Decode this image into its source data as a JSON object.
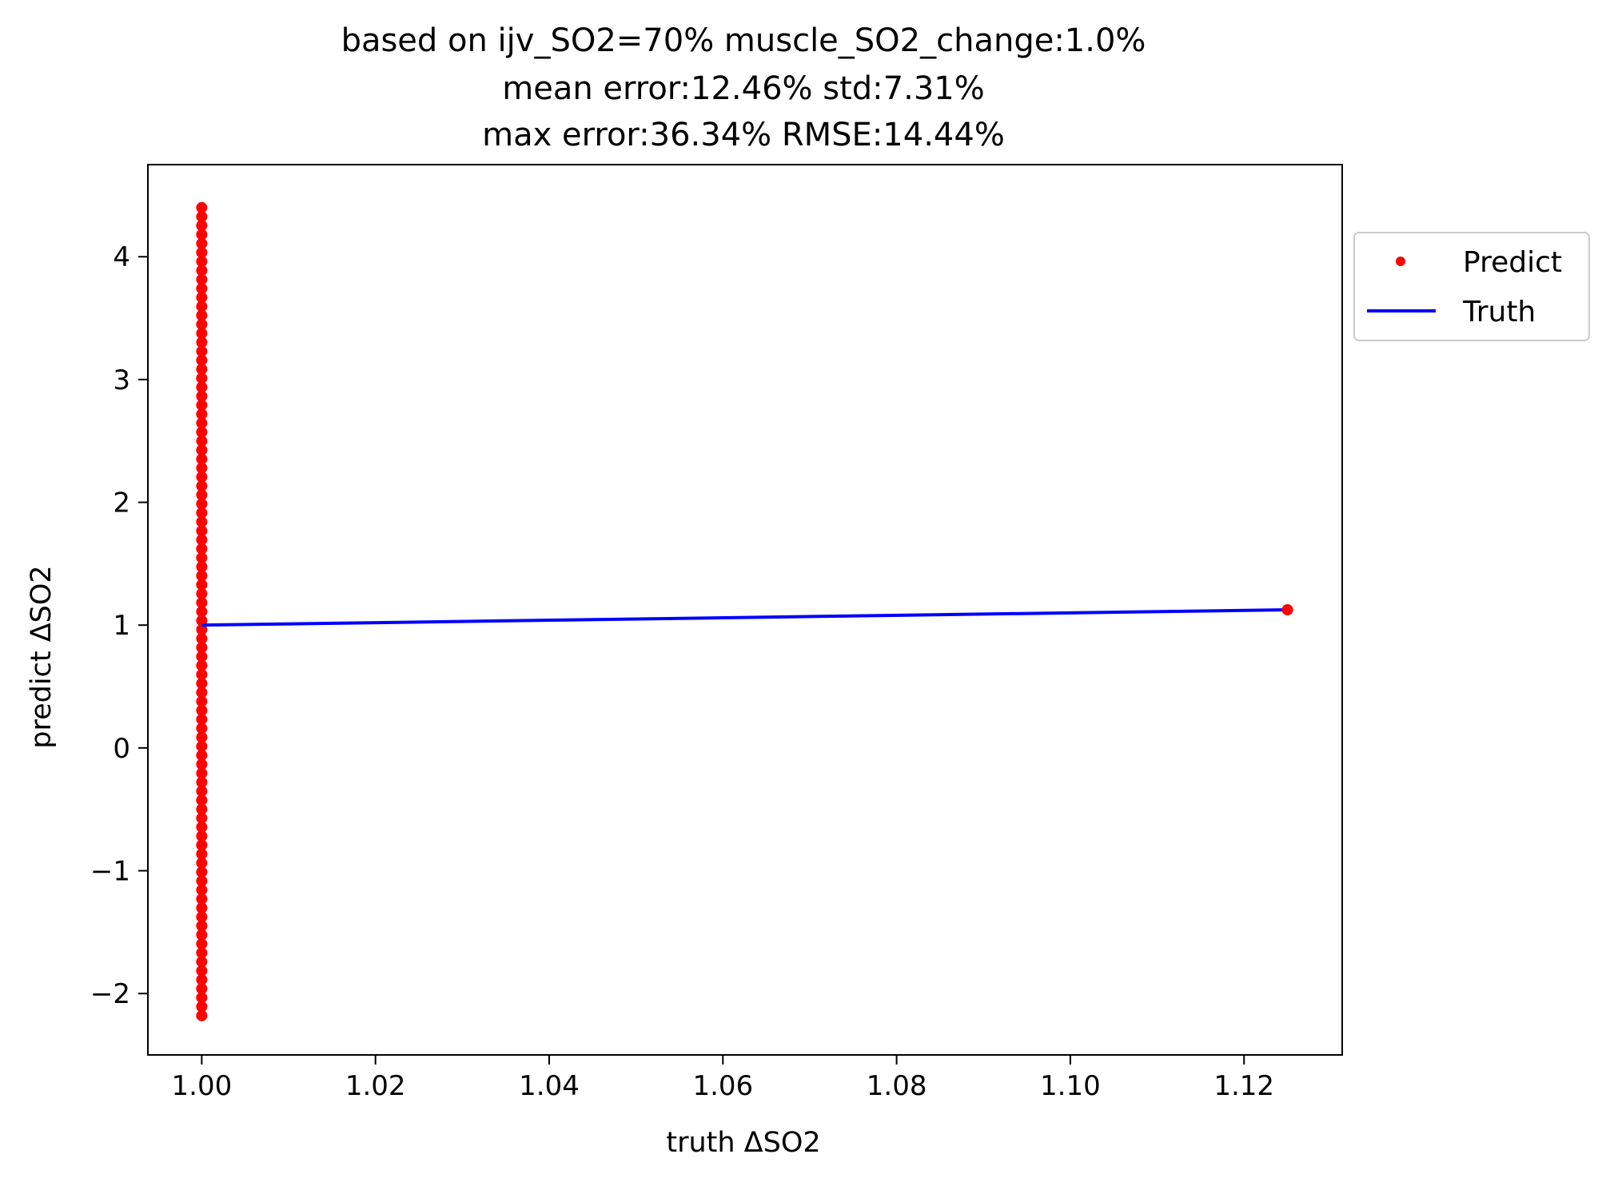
{
  "chart_data": {
    "type": "scatter",
    "title": [
      "based on ijv_SO2=70% muscle_SO2_change:1.0%",
      "mean error:12.46% std:7.31%",
      "max error:36.34% RMSE:14.44%"
    ],
    "xlabel": "truth ΔSO2",
    "ylabel": "predict ΔSO2",
    "xlim": [
      0.9938,
      1.1313
    ],
    "ylim": [
      -2.5,
      4.75
    ],
    "x_ticks": [
      1.0,
      1.02,
      1.04,
      1.06,
      1.08,
      1.1,
      1.12
    ],
    "x_tick_labels": [
      "1.00",
      "1.02",
      "1.04",
      "1.06",
      "1.08",
      "1.10",
      "1.12"
    ],
    "y_ticks": [
      -2,
      -1,
      0,
      1,
      2,
      3,
      4
    ],
    "y_tick_labels": [
      "−2",
      "−1",
      "0",
      "1",
      "2",
      "3",
      "4"
    ],
    "grid": false,
    "legend_position": "outside-right-top",
    "series": [
      {
        "name": "Predict",
        "kind": "points",
        "color": "#ff0000",
        "points": [
          {
            "x": 1.0,
            "y_from": -2.18,
            "y_to": 4.4
          },
          {
            "x": 1.125,
            "y": 1.125
          }
        ]
      },
      {
        "name": "Truth",
        "kind": "line",
        "color": "#0000ff",
        "x": [
          1.0,
          1.125
        ],
        "y": [
          1.0,
          1.125
        ]
      }
    ]
  }
}
